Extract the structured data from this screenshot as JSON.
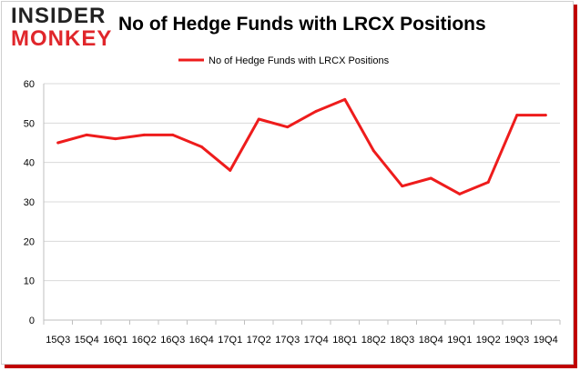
{
  "logo": {
    "line1": "INSIDER",
    "line2": "MONKEY"
  },
  "chart_data": {
    "type": "line",
    "title": "No of Hedge Funds with LRCX Positions",
    "xlabel": "",
    "ylabel": "",
    "ylim": [
      0,
      60
    ],
    "yticks": [
      0,
      10,
      20,
      30,
      40,
      50,
      60
    ],
    "grid": true,
    "legend": "top-center",
    "categories": [
      "15Q3",
      "15Q4",
      "16Q1",
      "16Q2",
      "16Q3",
      "16Q4",
      "17Q1",
      "17Q2",
      "17Q3",
      "17Q4",
      "18Q1",
      "18Q2",
      "18Q3",
      "18Q4",
      "19Q1",
      "19Q2",
      "19Q3",
      "19Q4"
    ],
    "series": [
      {
        "name": "No of Hedge Funds with LRCX Positions",
        "color": "#ee1c1c",
        "values": [
          45,
          47,
          46,
          47,
          47,
          44,
          38,
          51,
          49,
          53,
          56,
          43,
          34,
          36,
          32,
          35,
          52,
          52
        ]
      }
    ]
  }
}
